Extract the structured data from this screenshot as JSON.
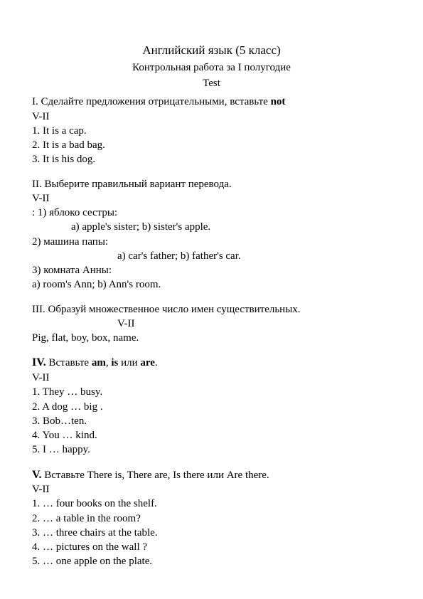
{
  "header": {
    "line1": "Английский   язык   (5  класс)",
    "line2": "Контрольная    работа   за    I     полугодие",
    "line3": "Test"
  },
  "s1": {
    "head_prefix": "I. Сделайте  предложения  отрицательными,   вставьте  ",
    "head_bold": "not",
    "variant": "V-II",
    "i1": "1.  It   is  a  cap.",
    "i2": "2.  It   is  a  bad  bag.",
    "i3": "3.  It   is  his  dog."
  },
  "s2": {
    "head": "II. Выберите  правильный  вариант  перевода.",
    "variant": " V-II",
    "q1_label": ":  1) яблоко сестры:",
    "q1_opts": "a) apple's   sister;   b) sister's apple.",
    "q2_label": "  2) машина папы:",
    "q2_opts": "a) car's   father;  b) father's  car.",
    "q3_label": "  3) комната Анны:",
    "q3_opts": "a) room's  Ann;   b) Ann's  room."
  },
  "s3": {
    "head": " III. Образуй множественное число имен существительных.",
    "variant": "V-II",
    "body": "Pig,  flat, boy, box, name."
  },
  "s4": {
    "head_roman": "IV.",
    "head_text1": " Вставьте  ",
    "head_b1": "am",
    "head_sep1": ",  ",
    "head_b2": "is",
    "head_text2": "  или  ",
    "head_b3": "are",
    "head_dot": ".",
    "variant": "V-II",
    "i1": "  1. They  …  busy.",
    "i2": "  2. A dog  … big .",
    "i3": "  3. Bob…ten.",
    "i4": "  4. You … kind.",
    "i5": "  5. I  …   happy."
  },
  "s5": {
    "head_roman": "V.",
    "head_text": "  Вставьте   There is,   There are,   Is there   или   Are there.",
    "variant": "V-II",
    "i1": "1.  …  four books on the shelf.",
    "i2": "2.  … a table in the room?",
    "i3": "3.  … three chairs at the table.",
    "i4": "4.  …  pictures on the wall ?",
    "i5": "5.  …  one apple on the plate."
  }
}
